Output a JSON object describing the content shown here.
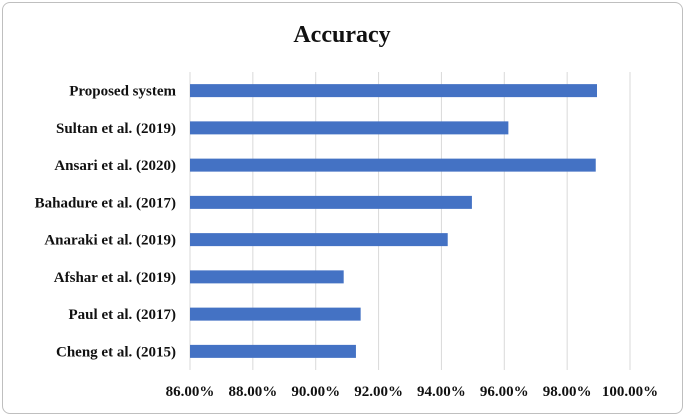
{
  "chart_data": {
    "type": "bar",
    "orientation": "horizontal",
    "title": "Accuracy",
    "categories": [
      "Proposed system",
      "Sultan et al. (2019)",
      "Ansari et al. (2020)",
      "Bahadure et al. (2017)",
      "Anaraki et al. (2019)",
      "Afshar et al. (2019)",
      "Paul et al. (2017)",
      "Cheng et al. (2015)"
    ],
    "values": [
      98.95,
      96.13,
      98.91,
      94.97,
      94.2,
      90.89,
      91.43,
      91.28
    ],
    "x_ticks": [
      "86.00%",
      "88.00%",
      "90.00%",
      "92.00%",
      "94.00%",
      "96.00%",
      "98.00%",
      "100.00%"
    ],
    "xlim": [
      86,
      100
    ],
    "x_tick_step": 2,
    "value_unit": "%",
    "grid": "vertical",
    "legend": "none",
    "bar_color": "#4472C4",
    "grid_color": "#d9d9d9"
  }
}
